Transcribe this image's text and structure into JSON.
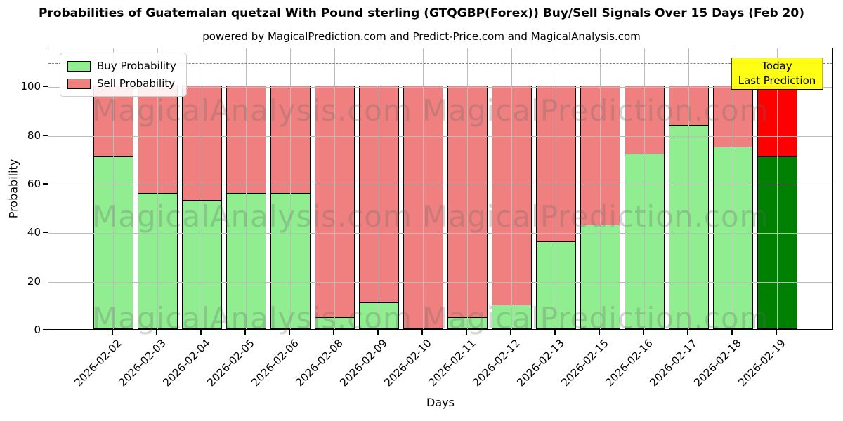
{
  "figure": {
    "title": "Probabilities of Guatemalan quetzal With Pound sterling (GTQGBP(Forex)) Buy/Sell Signals Over 15 Days (Feb 20)",
    "subtitle": "powered by MagicalPrediction.com and Predict-Price.com and MagicalAnalysis.com"
  },
  "watermarks": {
    "left_text": "MagicalAnalysis.com",
    "right_text": "MagicalPrediction.com"
  },
  "legend": {
    "items": [
      {
        "label": "Buy Probability",
        "color": "#90EE90"
      },
      {
        "label": "Sell Probability",
        "color": "#F08080"
      }
    ]
  },
  "annotation": {
    "line1": "Today",
    "line2": "Last Prediction",
    "bg_color": "#FFFF00"
  },
  "chart_data": {
    "type": "bar",
    "stacked": true,
    "title": "Probabilities of Guatemalan quetzal With Pound sterling (GTQGBP(Forex)) Buy/Sell Signals Over 15 Days (Feb 20)",
    "subtitle": "powered by MagicalPrediction.com and Predict-Price.com and MagicalAnalysis.com",
    "xlabel": "Days",
    "ylabel": "Probability",
    "categories": [
      "2026-02-02",
      "2026-02-03",
      "2026-02-04",
      "2026-02-05",
      "2026-02-06",
      "2026-02-08",
      "2026-02-09",
      "2026-02-10",
      "2026-02-11",
      "2026-02-12",
      "2026-02-13",
      "2026-02-15",
      "2026-02-16",
      "2026-02-17",
      "2026-02-18",
      "2026-02-19"
    ],
    "series": [
      {
        "name": "Buy Probability",
        "color": "#90EE90",
        "values": [
          71,
          56,
          53,
          56,
          56,
          5,
          11,
          0,
          5,
          10,
          36,
          43,
          72,
          84,
          75,
          71
        ]
      },
      {
        "name": "Sell Probability",
        "color": "#F08080",
        "values": [
          29,
          44,
          47,
          44,
          44,
          95,
          89,
          100,
          95,
          90,
          64,
          57,
          28,
          16,
          25,
          29
        ]
      }
    ],
    "today": {
      "category": "2026-02-19",
      "index": 15,
      "buy_color": "#008000",
      "sell_color": "#FF0000"
    },
    "yticks": [
      0,
      20,
      40,
      60,
      80,
      100
    ],
    "ylim": [
      0,
      116
    ],
    "dashed_line_y": 110,
    "grid": true,
    "bar_edge_color": "#000000",
    "legend_position": "upper left"
  }
}
